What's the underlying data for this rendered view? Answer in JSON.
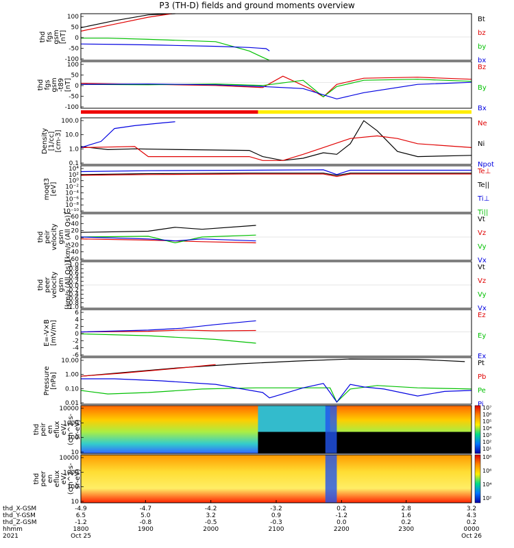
{
  "title": "P3 (TH-D) fields and ground moments overview",
  "chart_data": {
    "type": "multi-panel",
    "time_axis": {
      "x_ticks": [
        "1800",
        "1900",
        "2000",
        "2100",
        "2200",
        "2300",
        "0000"
      ],
      "rows": [
        {
          "label": "thd_X-GSM",
          "values": [
            "-4.9",
            "-4.7",
            "-4.2",
            "-3.2",
            "0.2",
            "2.8",
            "3.2"
          ]
        },
        {
          "label": "thd_Y-GSM",
          "values": [
            "6.5",
            "5.0",
            "3.2",
            "0.9",
            "-1.2",
            "1.6",
            "4.3"
          ]
        },
        {
          "label": "thd_Z-GSM",
          "values": [
            "-1.2",
            "-0.8",
            "-0.5",
            "-0.3",
            "0.0",
            "0.2",
            "0.2"
          ]
        },
        {
          "label": "hhmm",
          "values": [
            "1800",
            "1900",
            "2000",
            "2100",
            "2200",
            "2300",
            "0000"
          ]
        },
        {
          "label": "2021",
          "values": [
            "Oct 25",
            "",
            "",
            "",
            "",
            "",
            "Oct 26"
          ]
        }
      ]
    },
    "panels": [
      {
        "id": "fgs",
        "ylabel": [
          "thd",
          "fgs",
          "gsm",
          "[nT]"
        ],
        "yticks": [
          "100",
          "50",
          "0",
          "-50",
          "-100"
        ],
        "legend": [
          {
            "text": "Bt",
            "color": "#000000"
          },
          {
            "text": "bz",
            "color": "#e00000"
          },
          {
            "text": "by",
            "color": "#00c000"
          },
          {
            "text": "bx",
            "color": "#0000e0"
          }
        ],
        "series": [
          {
            "name": "Bt",
            "color": "#000000",
            "x": [
              0,
              50,
              100,
              140
            ],
            "y": [
              40,
              70,
              95,
              110
            ]
          },
          {
            "name": "bz",
            "color": "#e00000",
            "x": [
              0,
              50,
              100,
              135
            ],
            "y": [
              25,
              55,
              85,
              105
            ]
          },
          {
            "name": "by",
            "color": "#00c000",
            "x": [
              0,
              40,
              100,
              200,
              250,
              272,
              280
            ],
            "y": [
              -5,
              -5,
              -10,
              -20,
              -60,
              -90,
              -100
            ]
          },
          {
            "name": "bx",
            "color": "#0000e0",
            "x": [
              0,
              60,
              120,
              200,
              250,
              275,
              280
            ],
            "y": [
              -30,
              -32,
              -35,
              -40,
              -45,
              -50,
              -60
            ]
          }
        ]
      },
      {
        "id": "fgs_gsm_t89",
        "ylabel": [
          "thd",
          "fgs",
          "gsm",
          "-t89",
          "[nT]"
        ],
        "yticks": [
          "100",
          "50",
          "0",
          "-50",
          "-100"
        ],
        "legend": [
          {
            "text": "Bz",
            "color": "#e00000"
          },
          {
            "text": "By",
            "color": "#00c000"
          },
          {
            "text": "Bx",
            "color": "#0000e0"
          }
        ],
        "series": [
          {
            "name": "Bz",
            "color": "#e00000",
            "x": [
              0,
              100,
              200,
              270,
              300,
              340,
              360,
              380,
              420,
              500,
              580
            ],
            "y": [
              -5,
              -10,
              -15,
              -25,
              30,
              -30,
              -70,
              -10,
              20,
              25,
              15
            ]
          },
          {
            "name": "By",
            "color": "#00c000",
            "x": [
              0,
              100,
              200,
              270,
              330,
              360,
              380,
              420,
              500,
              580
            ],
            "y": [
              -10,
              -12,
              -8,
              -15,
              10,
              -70,
              -20,
              10,
              15,
              5
            ]
          },
          {
            "name": "Bx",
            "color": "#0000e0",
            "x": [
              0,
              100,
              200,
              270,
              330,
              360,
              380,
              420,
              500,
              580
            ],
            "y": [
              -10,
              -8,
              -12,
              -20,
              -30,
              -60,
              -80,
              -50,
              -10,
              0
            ]
          }
        ]
      },
      {
        "id": "density",
        "ylabel": [
          "Density",
          "[1/cc]",
          "[cm-3]"
        ],
        "yticks": [
          "100.0",
          "10.0",
          "1.0",
          "0.1"
        ],
        "legend": [
          {
            "text": "Ne",
            "color": "#e00000"
          },
          {
            "text": "Ni",
            "color": "#000000"
          },
          {
            "text": "Npot",
            "color": "#0000e0"
          }
        ],
        "series": [
          {
            "name": "Ni",
            "color": "#000000",
            "x": [
              0,
              40,
              80,
              150,
              250,
              270,
              300,
              330,
              360,
              380,
              400,
              420,
              440,
              470,
              500,
              580
            ],
            "y": [
              1.2,
              0.7,
              0.8,
              0.7,
              0.6,
              0.2,
              0.1,
              0.15,
              0.4,
              0.3,
              2.0,
              120,
              20,
              0.5,
              0.2,
              0.25
            ]
          },
          {
            "name": "Ne",
            "color": "#e00000",
            "x": [
              0,
              40,
              80,
              100,
              150,
              250,
              270,
              300,
              330,
              360,
              400,
              440,
              470,
              500,
              580
            ],
            "y": [
              1.0,
              1.1,
              1.2,
              0.2,
              0.2,
              0.2,
              0.1,
              0.1,
              0.3,
              1.0,
              5.0,
              8.0,
              5.0,
              2.0,
              1.0
            ]
          },
          {
            "name": "Npot",
            "color": "#0000e0",
            "x": [
              0,
              30,
              50,
              80,
              120,
              140
            ],
            "y": [
              1.0,
              3.0,
              30,
              50,
              80,
              100
            ]
          }
        ]
      },
      {
        "id": "temperature",
        "ylabel": [
          "moqt3",
          "[eV]"
        ],
        "yticks": [
          "10⁴",
          "10²",
          "10⁰",
          "10⁻²",
          "10⁻⁴",
          "10⁻⁶",
          "10⁻⁸",
          "10⁻¹⁰"
        ],
        "legend": [
          {
            "text": "Te⊥",
            "color": "#e00000"
          },
          {
            "text": "Te||",
            "color": "#000000"
          },
          {
            "text": "Ti⊥",
            "color": "#0000e0"
          },
          {
            "text": "Ti||",
            "color": "#00c000"
          }
        ],
        "series": [
          {
            "name": "Te||",
            "color": "#000000",
            "x": [
              0,
              100,
              250,
              360,
              380,
              400,
              580
            ],
            "y": [
              100,
              200,
              300,
              300,
              50,
              300,
              300
            ]
          },
          {
            "name": "Te⊥",
            "color": "#e00000",
            "x": [
              0,
              100,
              250,
              360,
              380,
              400,
              580
            ],
            "y": [
              50,
              100,
              150,
              150,
              20,
              150,
              150
            ]
          },
          {
            "name": "Ti⊥",
            "color": "#0000e0",
            "x": [
              0,
              100,
              250,
              360,
              380,
              400,
              580
            ],
            "y": [
              1000,
              2000,
              3000,
              4000,
              100,
              3000,
              3000
            ]
          }
        ]
      },
      {
        "id": "peir_velocity",
        "ylabel": [
          "thd",
          "peir",
          "velocity",
          "gsm",
          "[km/s (All Qs)]"
        ],
        "yticks": [
          "60",
          "40",
          "20",
          "0",
          "-20",
          "-40",
          "-60"
        ],
        "legend": [
          {
            "text": "Vt",
            "color": "#000000"
          },
          {
            "text": "Vz",
            "color": "#e00000"
          },
          {
            "text": "Vy",
            "color": "#00c000"
          },
          {
            "text": "Vx",
            "color": "#0000e0"
          }
        ],
        "series": [
          {
            "name": "Vt",
            "color": "#000000",
            "x": [
              0,
              100,
              140,
              180,
              260
            ],
            "y": [
              12,
              15,
              25,
              20,
              30
            ]
          },
          {
            "name": "Vz",
            "color": "#e00000",
            "x": [
              0,
              100,
              140,
              180,
              260
            ],
            "y": [
              -5,
              -8,
              -10,
              -12,
              -15
            ]
          },
          {
            "name": "Vy",
            "color": "#00c000",
            "x": [
              0,
              100,
              140,
              180,
              260
            ],
            "y": [
              0,
              2,
              -15,
              0,
              5
            ]
          },
          {
            "name": "Vx",
            "color": "#0000e0",
            "x": [
              0,
              100,
              140,
              180,
              260
            ],
            "y": [
              0,
              -5,
              -10,
              -5,
              -10
            ]
          }
        ]
      },
      {
        "id": "peer_velocity",
        "ylabel": [
          "thd",
          "peer",
          "velocity",
          "gsm",
          "[km/s (All Qs)]"
        ],
        "yticks": [
          "1.0",
          "0.8",
          "0.6",
          "0.4",
          "0.2",
          "0.0",
          "-0.2",
          "-0.4",
          "-0.6",
          "-0.8",
          "-1.0"
        ],
        "legend": [
          {
            "text": "Vt",
            "color": "#000000"
          },
          {
            "text": "Vz",
            "color": "#e00000"
          },
          {
            "text": "Vy",
            "color": "#00c000"
          },
          {
            "text": "Vx",
            "color": "#0000e0"
          }
        ],
        "series": []
      },
      {
        "id": "efield",
        "ylabel": [
          "E=-V×B",
          "[mV/m]"
        ],
        "yticks": [
          "6",
          "4",
          "2",
          "0",
          "-2",
          "-4",
          "-6"
        ],
        "legend": [
          {
            "text": "Ez",
            "color": "#e00000"
          },
          {
            "text": "Ey",
            "color": "#00c000"
          },
          {
            "text": "Ex",
            "color": "#0000e0"
          }
        ],
        "series": [
          {
            "name": "Ez",
            "color": "#e00000",
            "x": [
              0,
              100,
              150,
              200,
              260
            ],
            "y": [
              0,
              0.2,
              0.5,
              0.3,
              0.4
            ]
          },
          {
            "name": "Ey",
            "color": "#00c000",
            "x": [
              0,
              100,
              150,
              200,
              260
            ],
            "y": [
              -0.5,
              -1,
              -1.5,
              -2,
              -3
            ]
          },
          {
            "name": "Ex",
            "color": "#0000e0",
            "x": [
              0,
              100,
              150,
              200,
              260
            ],
            "y": [
              0,
              0.5,
              1,
              2,
              3
            ]
          }
        ]
      },
      {
        "id": "pressure",
        "ylabel": [
          "Pressure",
          "[nPa]"
        ],
        "yticks": [
          "10.00",
          "1.00",
          "0.10",
          "0.01"
        ],
        "legend": [
          {
            "text": "Pt",
            "color": "#000000"
          },
          {
            "text": "Pb",
            "color": "#e00000"
          },
          {
            "text": "Pe",
            "color": "#00c000"
          },
          {
            "text": "Pi",
            "color": "#0000e0"
          }
        ],
        "series": [
          {
            "name": "Pt",
            "color": "#000000",
            "x": [
              0,
              60,
              140,
              240,
              320,
              400,
              500,
              570
            ],
            "y": [
              0.5,
              1.0,
              2.5,
              6.0,
              10,
              15,
              14,
              9
            ]
          },
          {
            "name": "Pb",
            "color": "#e00000",
            "x": [
              0,
              60,
              140,
              200
            ],
            "y": [
              0.5,
              0.9,
              2.3,
              5.0
            ]
          },
          {
            "name": "Pe",
            "color": "#00c000",
            "x": [
              0,
              40,
              100,
              180,
              260,
              330,
              370,
              380,
              400,
              440,
              500,
              580
            ],
            "y": [
              0.03,
              0.015,
              0.02,
              0.04,
              0.05,
              0.05,
              0.05,
              0.003,
              0.04,
              0.08,
              0.05,
              0.04
            ]
          },
          {
            "name": "Pi",
            "color": "#0000e0",
            "x": [
              0,
              50,
              120,
              200,
              270,
              280,
              300,
              330,
              360,
              370,
              380,
              400,
              420,
              450,
              500,
              540,
              580
            ],
            "y": [
              0.3,
              0.3,
              0.2,
              0.1,
              0.02,
              0.007,
              0.015,
              0.05,
              0.12,
              0.02,
              0.003,
              0.1,
              0.06,
              0.04,
              0.01,
              0.025,
              0.03
            ]
          }
        ]
      },
      {
        "id": "peir_spec",
        "ylabel": [
          "thd",
          "peir",
          "en",
          "eflux",
          "eV/",
          "(cm^2-s-",
          "sr-eV)"
        ],
        "yticks": [
          "10000",
          "1000",
          "100",
          "10"
        ],
        "colorbar_label": "[eV/(cm²-s-sr-eV)] (All Qs)",
        "colorbar_ticks": [
          "10⁷",
          "10⁶",
          "10⁵",
          "10⁴",
          "10³",
          "10²",
          "10¹"
        ]
      },
      {
        "id": "peer_spec",
        "ylabel": [
          "thd",
          "peer",
          "en",
          "eflux",
          "eV/",
          "(cm^2-s-",
          "sr-eV)"
        ],
        "yticks": [
          "10000",
          "1000",
          "100",
          "10"
        ],
        "colorbar_label": "[eV/(cm²-s-sr-eV)]",
        "colorbar_ticks": [
          "10⁸",
          "10⁶",
          "10⁴",
          "10²"
        ]
      }
    ]
  }
}
